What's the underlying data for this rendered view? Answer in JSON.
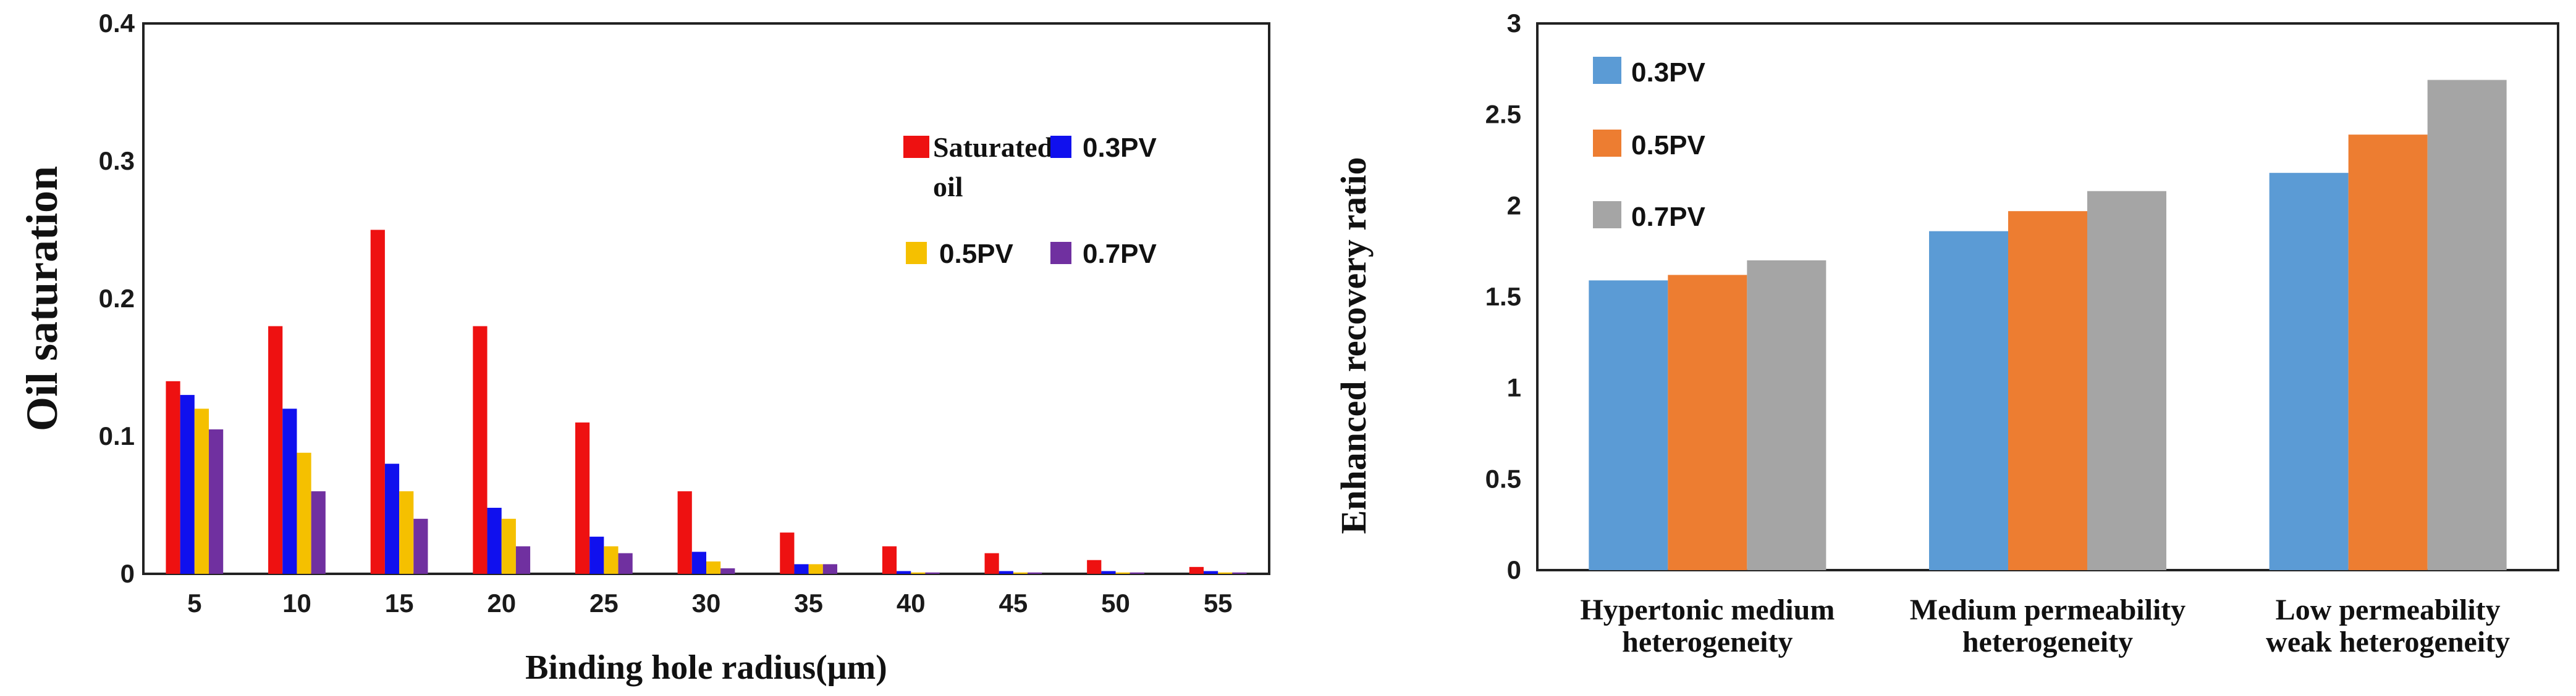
{
  "chart_data": [
    {
      "type": "bar",
      "title": "",
      "xlabel": "Binding hole radius(μm)",
      "ylabel": "Oil saturation",
      "ylim": [
        0,
        0.4
      ],
      "yticks": [
        "0",
        "0.1",
        "0.2",
        "0.3",
        "0.4"
      ],
      "grid": false,
      "legend_position": "top-right",
      "categories": [
        "5",
        "10",
        "15",
        "20",
        "25",
        "30",
        "35",
        "40",
        "45",
        "50",
        "55"
      ],
      "series": [
        {
          "name": "Saturated oil",
          "color": "#ee1111",
          "values": [
            0.14,
            0.18,
            0.25,
            0.18,
            0.11,
            0.06,
            0.03,
            0.02,
            0.015,
            0.01,
            0.005
          ]
        },
        {
          "name": "0.3PV",
          "color": "#1010ee",
          "values": [
            0.13,
            0.12,
            0.08,
            0.048,
            0.027,
            0.016,
            0.007,
            0.002,
            0.002,
            0.002,
            0.002
          ]
        },
        {
          "name": "0.5PV",
          "color": "#f5c000",
          "values": [
            0.12,
            0.088,
            0.06,
            0.04,
            0.02,
            0.009,
            0.007,
            0.001,
            0.001,
            0.001,
            0.001
          ]
        },
        {
          "name": "0.7PV",
          "color": "#7030a0",
          "values": [
            0.105,
            0.06,
            0.04,
            0.02,
            0.015,
            0.004,
            0.007,
            0.001,
            0.001,
            0.001,
            0.001
          ]
        }
      ]
    },
    {
      "type": "bar",
      "title": "",
      "xlabel": "",
      "ylabel": "Enhanced recovery ratio",
      "ylim": [
        0,
        3
      ],
      "yticks": [
        "0",
        "0.5",
        "1",
        "1.5",
        "2",
        "2.5",
        "3"
      ],
      "grid": false,
      "legend_position": "top-left",
      "categories": [
        [
          "Hypertonic medium",
          "heterogeneity"
        ],
        [
          "Medium permeability",
          "heterogeneity"
        ],
        [
          "Low permeability",
          "weak heterogeneity"
        ]
      ],
      "series": [
        {
          "name": "0.3PV",
          "color": "#5b9bd5",
          "values": [
            1.59,
            1.86,
            2.18
          ]
        },
        {
          "name": "0.5PV",
          "color": "#ed7d31",
          "values": [
            1.62,
            1.97,
            2.39
          ]
        },
        {
          "name": "0.7PV",
          "color": "#a5a5a5",
          "values": [
            1.7,
            2.08,
            2.69
          ]
        }
      ]
    }
  ]
}
